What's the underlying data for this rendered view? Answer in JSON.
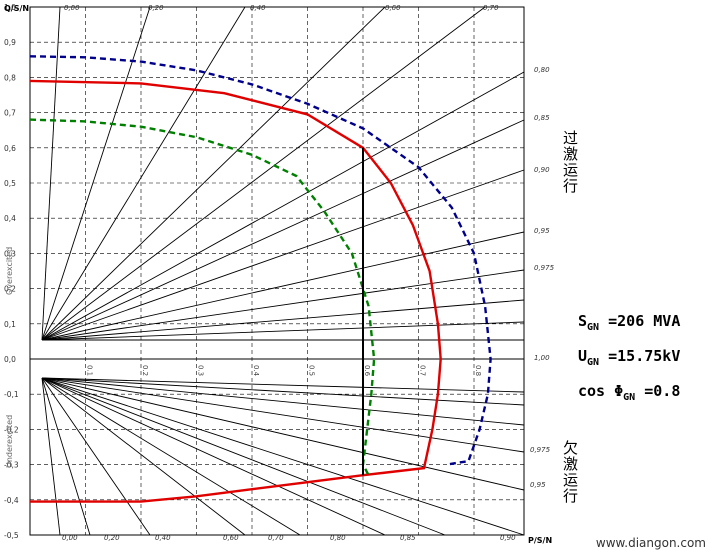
{
  "chart_data": {
    "type": "line",
    "xlabel": "P/S_N",
    "ylabel": "Q/S_N",
    "xlim": [
      0,
      1.0
    ],
    "ylim": [
      -0.5,
      1.0
    ],
    "x_ticks": [
      "0.0",
      "0.1",
      "0.2",
      "0.3",
      "0.4",
      "0.5",
      "0.6",
      "0.7",
      "0.8",
      "0.9",
      "1.0"
    ],
    "y_ticks": [
      "1,0",
      "0,9",
      "0,8",
      "0,7",
      "0,6",
      "0,5",
      "0,4",
      "0,3",
      "0,2",
      "0,1",
      "0,0",
      "-0,1",
      "-0,2",
      "-0,3",
      "-0,4",
      "-0,5"
    ],
    "pf_labels_top": [
      "0,00",
      "0,20",
      "0,40",
      "0,60",
      "0,70"
    ],
    "pf_labels_right_top": [
      "0,80",
      "0,85",
      "0,90",
      "0,95",
      "0,975",
      "1,00"
    ],
    "pf_labels_right_bottom": [
      "0,975",
      "0,95"
    ],
    "pf_labels_bottom": [
      "0,00",
      "0,20",
      "0,40",
      "0,60",
      "0,70",
      "0,80",
      "0,85",
      "0,90"
    ],
    "region_labels": {
      "over": "Overexcited",
      "under": "Underexcited"
    },
    "grid": true,
    "series": [
      {
        "style": "solid",
        "color": "#e00000",
        "points": [
          [
            0,
            0.79
          ],
          [
            0.2,
            0.783
          ],
          [
            0.35,
            0.755
          ],
          [
            0.5,
            0.695
          ],
          [
            0.6,
            0.6
          ],
          [
            0.65,
            0.5
          ],
          [
            0.69,
            0.38
          ],
          [
            0.72,
            0.25
          ],
          [
            0.735,
            0.1
          ],
          [
            0.74,
            0
          ],
          [
            0.735,
            -0.1
          ],
          [
            0.725,
            -0.2
          ],
          [
            0.71,
            -0.31
          ],
          [
            0.6,
            -0.33
          ],
          [
            0.5,
            -0.35
          ],
          [
            0.4,
            -0.37
          ],
          [
            0.3,
            -0.39
          ],
          [
            0.2,
            -0.405
          ],
          [
            0,
            -0.405
          ]
        ]
      },
      {
        "style": "dashed",
        "color": "#00008b",
        "points": [
          [
            0,
            0.86
          ],
          [
            0.1,
            0.857
          ],
          [
            0.2,
            0.845
          ],
          [
            0.3,
            0.82
          ],
          [
            0.4,
            0.78
          ],
          [
            0.5,
            0.725
          ],
          [
            0.6,
            0.655
          ],
          [
            0.7,
            0.545
          ],
          [
            0.76,
            0.43
          ],
          [
            0.8,
            0.3
          ],
          [
            0.82,
            0.15
          ],
          [
            0.83,
            0
          ],
          [
            0.825,
            -0.1
          ],
          [
            0.81,
            -0.2
          ],
          [
            0.79,
            -0.29
          ],
          [
            0.75,
            -0.3
          ]
        ]
      },
      {
        "style": "dashed",
        "color": "#008000",
        "points": [
          [
            0,
            0.68
          ],
          [
            0.1,
            0.675
          ],
          [
            0.2,
            0.66
          ],
          [
            0.3,
            0.63
          ],
          [
            0.4,
            0.58
          ],
          [
            0.48,
            0.52
          ],
          [
            0.53,
            0.42
          ],
          [
            0.58,
            0.3
          ],
          [
            0.61,
            0.15
          ],
          [
            0.62,
            0
          ],
          [
            0.615,
            -0.1
          ],
          [
            0.6,
            -0.3
          ],
          [
            0.61,
            -0.33
          ]
        ]
      },
      {
        "style": "solid",
        "color": "#000000",
        "points": [
          [
            0.6,
            0.6
          ],
          [
            0.6,
            -0.33
          ]
        ]
      }
    ]
  },
  "info": {
    "line1": {
      "base": "S",
      "sub": "GN",
      "rest": " =206 MVA"
    },
    "line2": {
      "base": "U",
      "sub": "GN",
      "rest": " =15.75kV"
    },
    "line3": {
      "base": "cos Φ",
      "sub": "GN",
      "rest": " =0.8"
    }
  },
  "labels": {
    "over": "过激运行",
    "under": "欠激运行"
  },
  "watermark": "www.diangon.com"
}
